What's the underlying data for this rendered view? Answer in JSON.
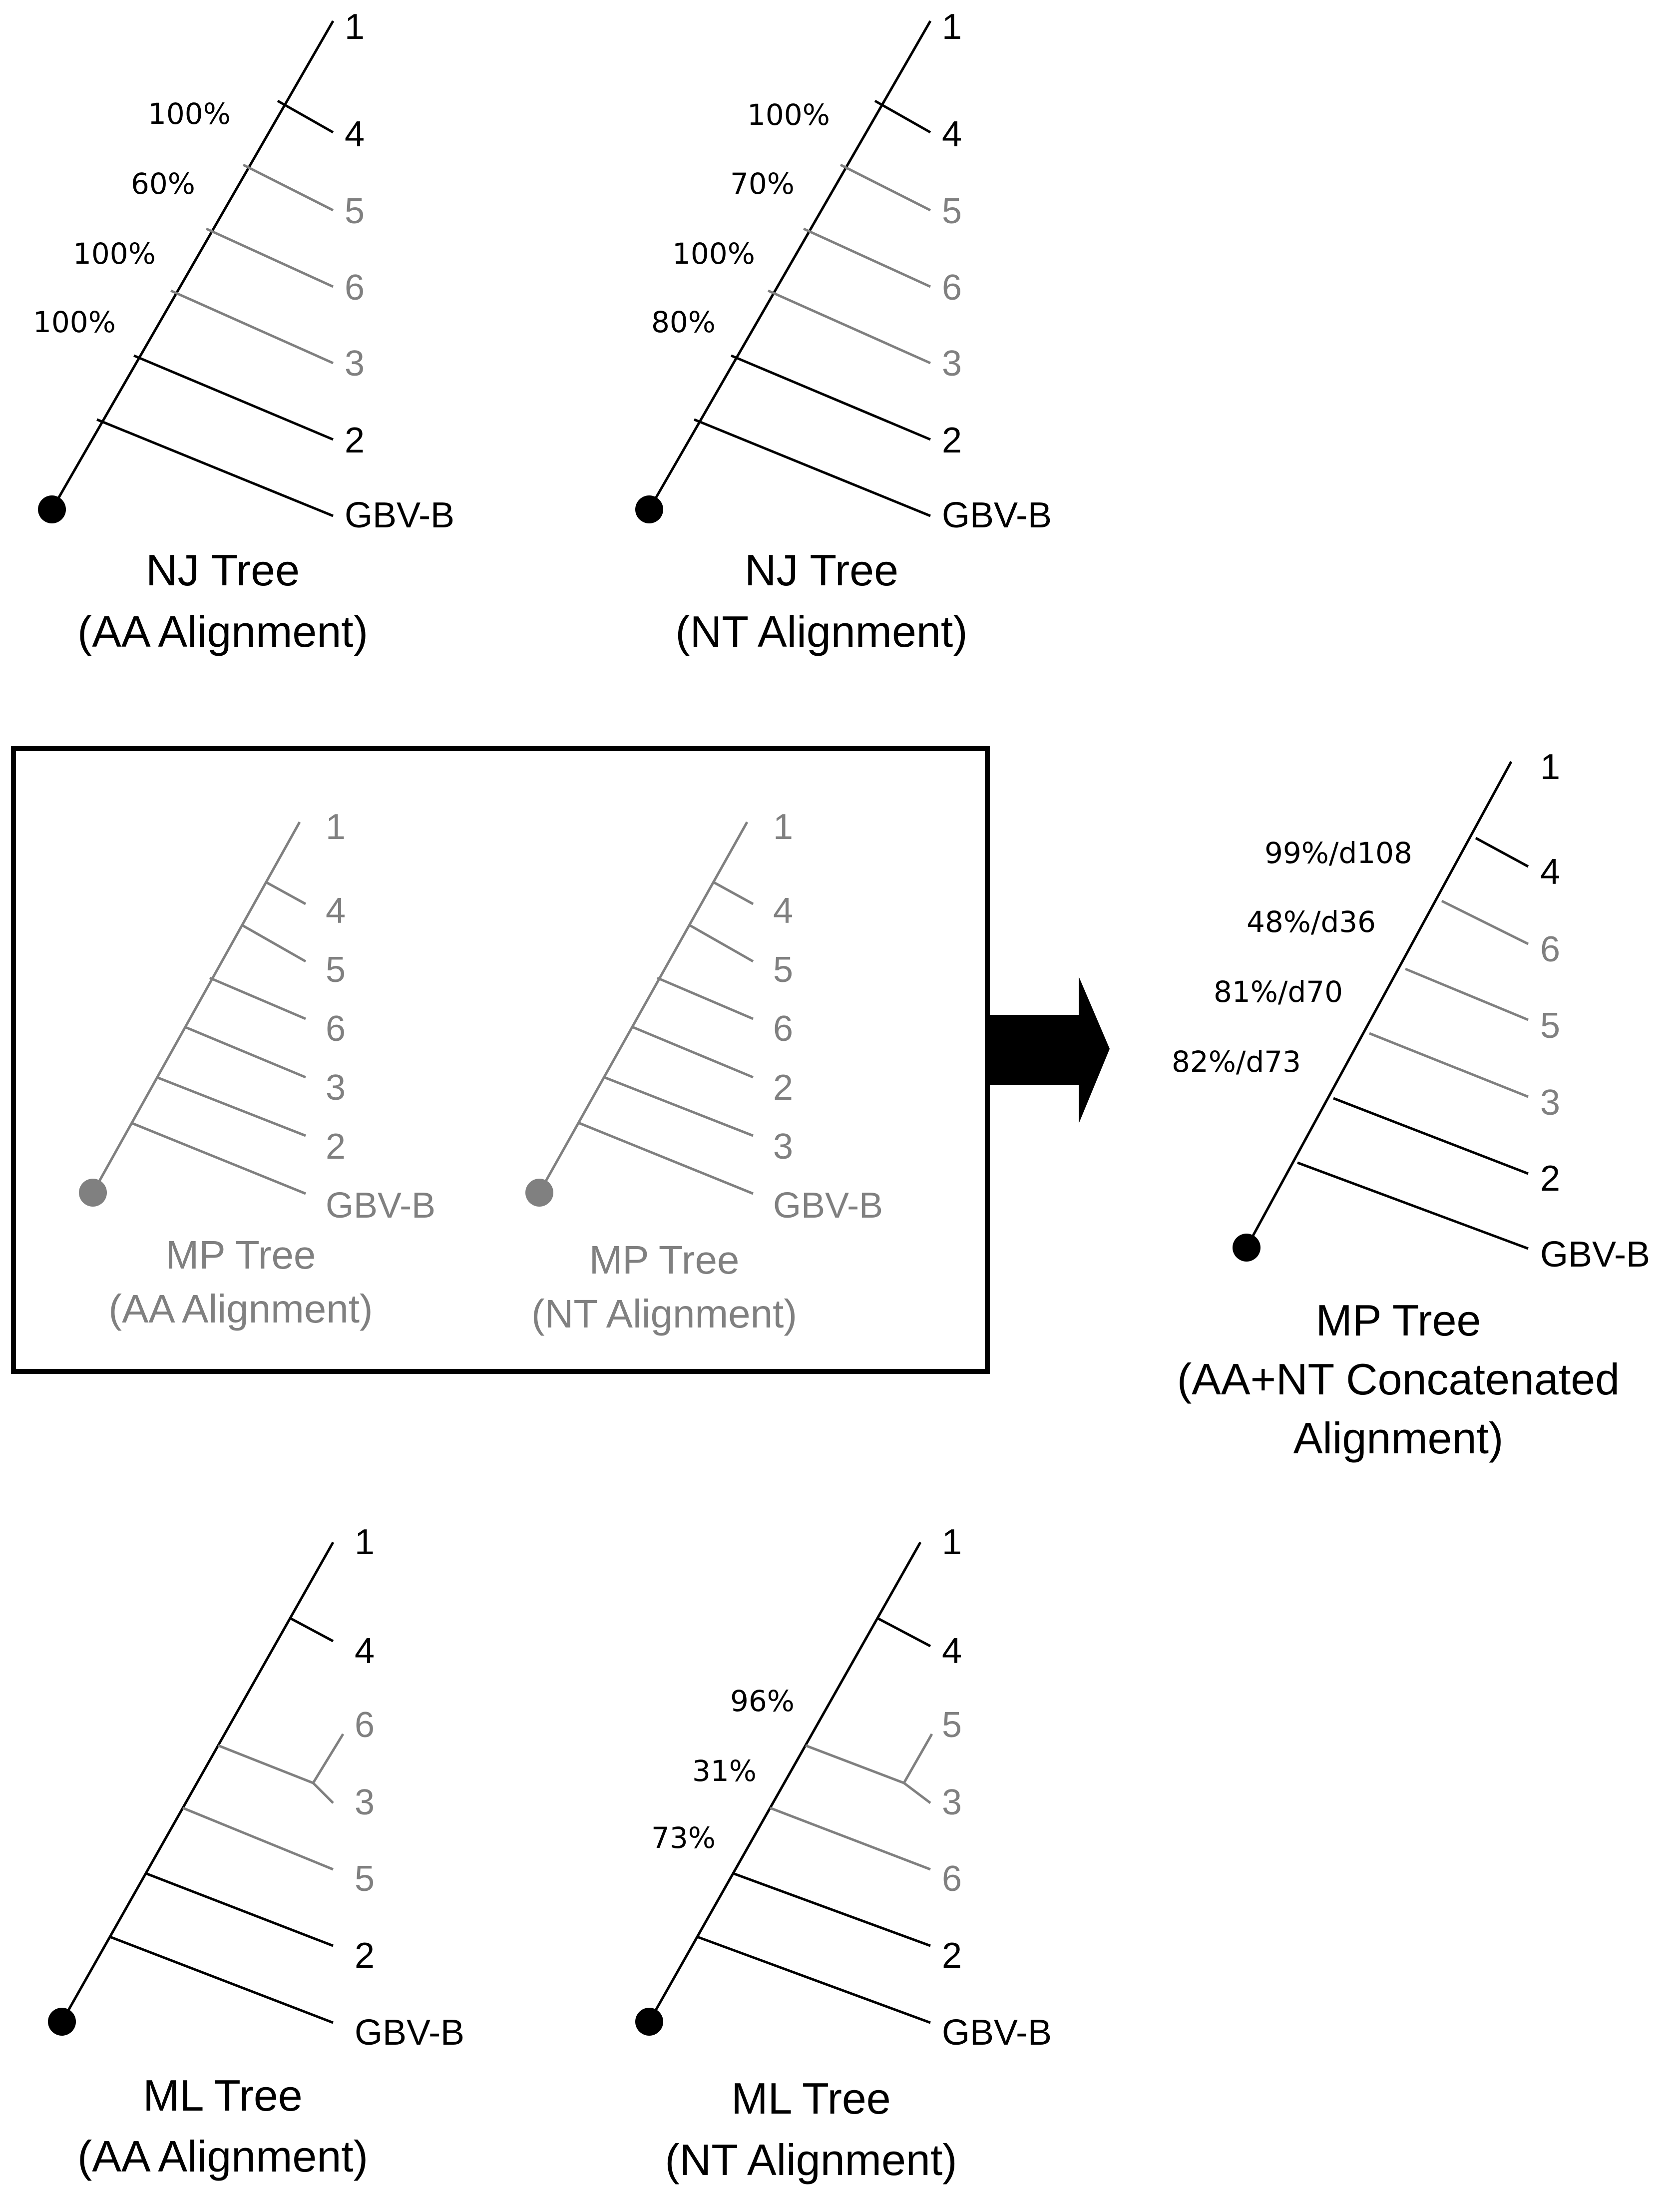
{
  "colors": {
    "primary": "#000000",
    "secondary": "#808080"
  },
  "trees": {
    "nj_aa": {
      "caption": [
        "NJ Tree",
        "(AA Alignment)"
      ],
      "tips": [
        "1",
        "4",
        "5",
        "6",
        "3",
        "2",
        "GBV-B"
      ],
      "tip_colors": [
        "black",
        "black",
        "grey",
        "grey",
        "grey",
        "black",
        "black"
      ],
      "support": [
        "100%",
        "60%",
        "100%",
        "100%"
      ]
    },
    "nj_nt": {
      "caption": [
        "NJ Tree",
        "(NT Alignment)"
      ],
      "tips": [
        "1",
        "4",
        "5",
        "6",
        "3",
        "2",
        "GBV-B"
      ],
      "tip_colors": [
        "black",
        "black",
        "grey",
        "grey",
        "grey",
        "black",
        "black"
      ],
      "support": [
        "100%",
        "70%",
        "100%",
        "80%"
      ]
    },
    "mp_aa": {
      "caption": [
        "MP Tree",
        "(AA Alignment)"
      ],
      "tips": [
        "1",
        "4",
        "5",
        "6",
        "3",
        "2",
        "GBV-B"
      ]
    },
    "mp_nt": {
      "caption": [
        "MP Tree",
        "(NT Alignment)"
      ],
      "tips": [
        "1",
        "4",
        "5",
        "6",
        "2",
        "3",
        "GBV-B"
      ]
    },
    "mp_concat": {
      "caption": [
        "MP Tree",
        "(AA+NT Concatenated",
        "Alignment)"
      ],
      "tips": [
        "1",
        "4",
        "6",
        "5",
        "3",
        "2",
        "GBV-B"
      ],
      "tip_colors": [
        "black",
        "black",
        "grey",
        "grey",
        "grey",
        "black",
        "black"
      ],
      "support": [
        "99%/d108",
        "48%/d36",
        "81%/d70",
        "82%/d73"
      ]
    },
    "ml_aa": {
      "caption": [
        "ML Tree",
        "(AA Alignment)"
      ],
      "tips": [
        "1",
        "4",
        "6",
        "3",
        "5",
        "2",
        "GBV-B"
      ],
      "tip_colors": [
        "black",
        "black",
        "grey",
        "grey",
        "grey",
        "black",
        "black"
      ]
    },
    "ml_nt": {
      "caption": [
        "ML Tree",
        "(NT Alignment)"
      ],
      "tips": [
        "1",
        "4",
        "5",
        "3",
        "6",
        "2",
        "GBV-B"
      ],
      "tip_colors": [
        "black",
        "black",
        "grey",
        "grey",
        "grey",
        "black",
        "black"
      ],
      "support": [
        "96%",
        "31%",
        "73%"
      ]
    }
  }
}
